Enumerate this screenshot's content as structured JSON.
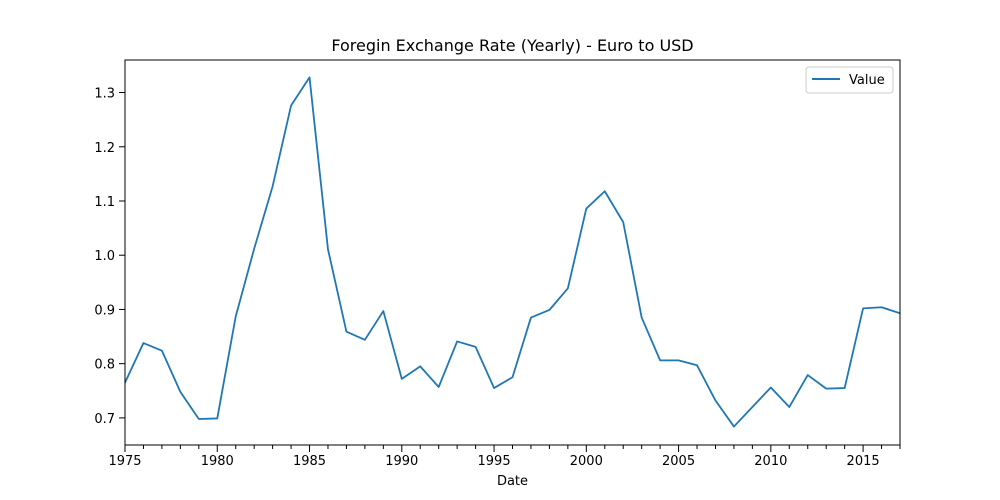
{
  "chart_data": {
    "type": "line",
    "title": "Foregin Exchange Rate (Yearly) - Euro to USD",
    "xlabel": "Date",
    "ylabel": "",
    "x_tick_labels": [
      "1975",
      "1980",
      "1985",
      "1990",
      "1995",
      "2000",
      "2005",
      "2010",
      "2015"
    ],
    "y_tick_labels": [
      "0.7",
      "0.8",
      "0.9",
      "1.0",
      "1.1",
      "1.2",
      "1.3"
    ],
    "xlim": [
      1975,
      2017
    ],
    "ylim": [
      0.65,
      1.36
    ],
    "grid": false,
    "legend_position": "upper right",
    "series": [
      {
        "name": "Value",
        "color": "#1f77b4",
        "x": [
          1975,
          1976,
          1977,
          1978,
          1979,
          1980,
          1981,
          1982,
          1983,
          1984,
          1985,
          1986,
          1987,
          1988,
          1989,
          1990,
          1991,
          1992,
          1993,
          1994,
          1995,
          1996,
          1997,
          1998,
          1999,
          2000,
          2001,
          2002,
          2003,
          2004,
          2005,
          2006,
          2007,
          2008,
          2009,
          2010,
          2011,
          2012,
          2013,
          2014,
          2015,
          2016,
          2017
        ],
        "values": [
          0.765,
          0.838,
          0.824,
          0.748,
          0.698,
          0.699,
          0.887,
          1.012,
          1.127,
          1.276,
          1.328,
          1.011,
          0.859,
          0.844,
          0.897,
          0.772,
          0.795,
          0.757,
          0.841,
          0.831,
          0.755,
          0.775,
          0.885,
          0.899,
          0.939,
          1.086,
          1.118,
          1.061,
          0.885,
          0.806,
          0.806,
          0.797,
          0.732,
          0.684,
          0.72,
          0.756,
          0.72,
          0.779,
          0.754,
          0.755,
          0.902,
          0.904,
          0.893
        ]
      }
    ]
  }
}
